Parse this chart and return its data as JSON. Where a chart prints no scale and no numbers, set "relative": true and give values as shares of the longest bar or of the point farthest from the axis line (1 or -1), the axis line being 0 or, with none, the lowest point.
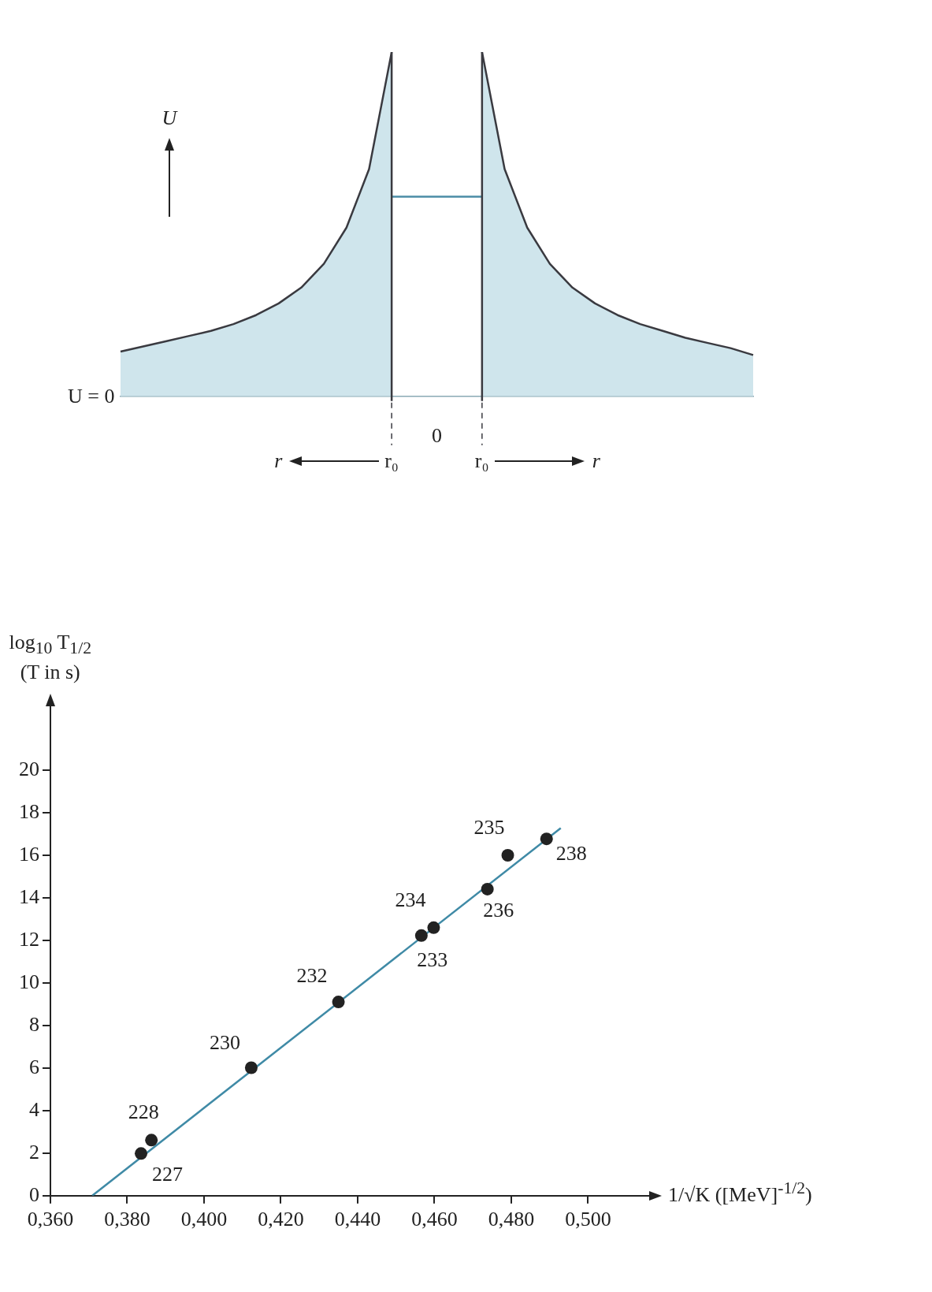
{
  "chart_data": [
    {
      "type": "area",
      "relative": true,
      "ylabel": "U",
      "legend": false,
      "grid": false,
      "categories": [
        null,
        null,
        null,
        null,
        null,
        null,
        null,
        null,
        null,
        null,
        null,
        null,
        null,
        null,
        null,
        null,
        null,
        null,
        null,
        null,
        null,
        null,
        null,
        null,
        null,
        null,
        null,
        null,
        null
      ],
      "annotations": [
        "U = 0",
        "r₀",
        "0",
        "r₀",
        "r",
        "r"
      ],
      "series": [
        {
          "color": "#3a3a40",
          "values": [
            0.13,
            0.145,
            0.16,
            0.175,
            0.19,
            0.21,
            0.236,
            0.27,
            0.316,
            0.385,
            0.49,
            0.66,
            1,
            null,
            null,
            null,
            null,
            null,
            null,
            null,
            null,
            null,
            null,
            null,
            null,
            null,
            null,
            null,
            null
          ]
        },
        {
          "color": "#3a3a40",
          "values": [
            null,
            null,
            null,
            null,
            null,
            null,
            null,
            null,
            null,
            null,
            null,
            null,
            null,
            null,
            null,
            null,
            1,
            0.66,
            0.49,
            0.385,
            0.316,
            0.27,
            0.236,
            0.21,
            0.19,
            0.17,
            0.155,
            0.14,
            0.12
          ]
        },
        {
          "type": "line",
          "color": "#4a8ca6",
          "values": [
            null,
            null,
            null,
            null,
            null,
            null,
            null,
            null,
            null,
            null,
            null,
            null,
            0.58,
            0.58,
            0.58,
            0.58,
            0.58,
            null,
            null,
            null,
            null,
            null,
            null,
            null,
            null,
            null,
            null,
            null,
            null
          ]
        }
      ]
    },
    {
      "type": "scatter",
      "xlabel": "1/√K ([MeV]$^{-1/2}$)",
      "ylabel": "log$_{10}$ T$_{1/2}$ (T in s)",
      "xlim": [
        0.36,
        0.511
      ],
      "ylim": [
        0,
        22.1
      ],
      "xticks": [
        {
          "value": 0.36,
          "label": "0,360"
        },
        {
          "value": 0.38,
          "label": "0,380"
        },
        {
          "value": 0.4,
          "label": "0,400"
        },
        {
          "value": 0.42,
          "label": "0,420"
        },
        {
          "value": 0.44,
          "label": "0,440"
        },
        {
          "value": 0.46,
          "label": "0,460"
        },
        {
          "value": 0.48,
          "label": "0,480"
        },
        {
          "value": 0.5,
          "label": "0,500"
        }
      ],
      "yticks": [
        0,
        2,
        4,
        6,
        8,
        10,
        12,
        14,
        16,
        18,
        20
      ],
      "grid": false,
      "legend": false,
      "annotations": [
        {
          "text": "227",
          "x": 0.3836,
          "y": 1.98
        },
        {
          "text": "228",
          "x": 0.3863,
          "y": 2.61
        },
        {
          "text": "230",
          "x": 0.4123,
          "y": 6.01
        },
        {
          "text": "232",
          "x": 0.435,
          "y": 9.1
        },
        {
          "text": "233",
          "x": 0.4566,
          "y": 12.22
        },
        {
          "text": "234",
          "x": 0.4598,
          "y": 12.59
        },
        {
          "text": "236",
          "x": 0.4738,
          "y": 14.4
        },
        {
          "text": "235",
          "x": 0.4791,
          "y": 15.99
        },
        {
          "text": "238",
          "x": 0.4892,
          "y": 16.76
        }
      ],
      "series": [
        {
          "color": "#222222",
          "marker": "circle",
          "x": [
            0.3836,
            0.3863,
            0.4123,
            0.435,
            0.4566,
            0.4598,
            0.4738,
            0.4791,
            0.4892
          ],
          "values": [
            1.98,
            2.61,
            6.01,
            9.1,
            12.22,
            12.59,
            14.4,
            15.99,
            16.76
          ]
        },
        {
          "type": "line",
          "color": "#3f8aa6",
          "x": [
            0.3709,
            0.4929
          ],
          "values": [
            0,
            17.27
          ]
        }
      ]
    }
  ]
}
